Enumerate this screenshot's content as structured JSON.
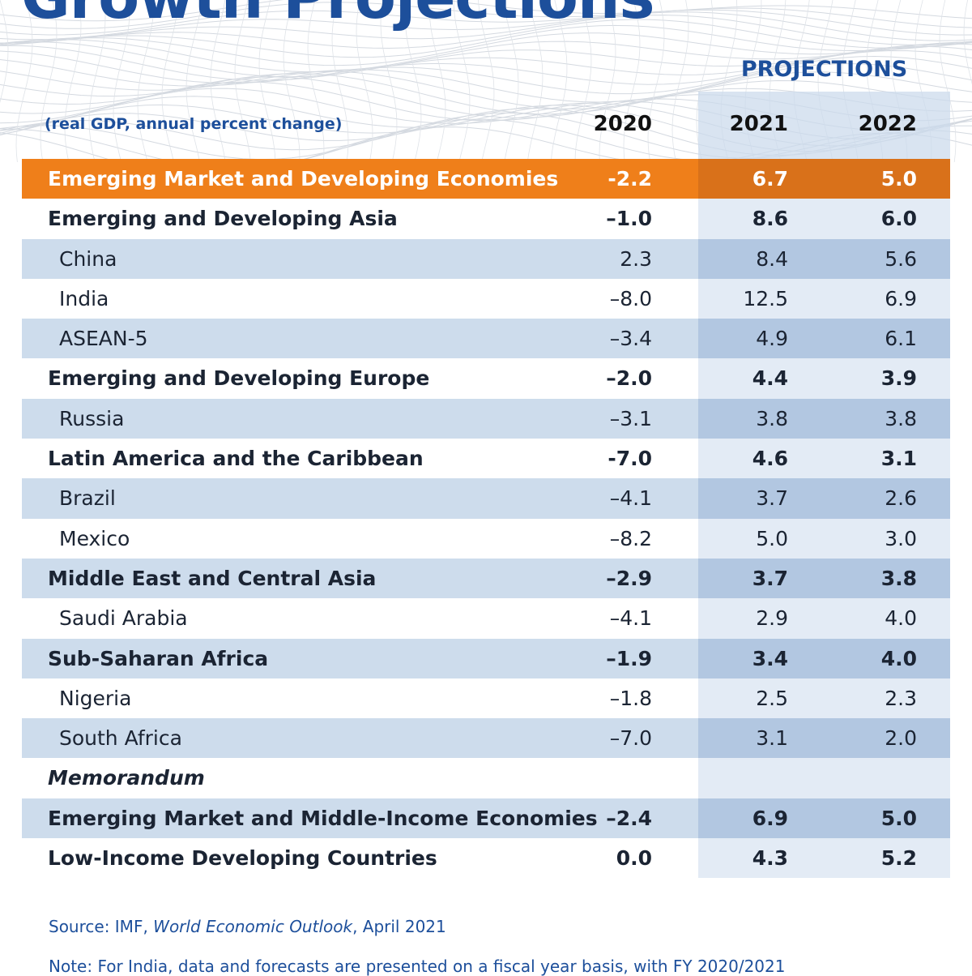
{
  "title": "Growth Projections",
  "projections_label": "PROJECTIONS",
  "units_note": "(real GDP, annual percent change)",
  "columns": [
    "2020",
    "2021",
    "2022"
  ],
  "rows": [
    {
      "label": "Emerging Market and Developing Economies",
      "level": 1,
      "values": [
        "-2.2",
        "6.7",
        "5.0"
      ],
      "highlight": true
    },
    {
      "label": "Emerging and Developing Asia",
      "level": 1,
      "values": [
        "–1.0",
        "8.6",
        "6.0"
      ]
    },
    {
      "label": "China",
      "level": 2,
      "values": [
        "2.3",
        "8.4",
        "5.6"
      ]
    },
    {
      "label": "India",
      "level": 2,
      "values": [
        "–8.0",
        "12.5",
        "6.9"
      ]
    },
    {
      "label": "ASEAN-5",
      "level": 2,
      "values": [
        "–3.4",
        "4.9",
        "6.1"
      ]
    },
    {
      "label": "Emerging and Developing Europe",
      "level": 1,
      "values": [
        "–2.0",
        "4.4",
        "3.9"
      ]
    },
    {
      "label": "Russia",
      "level": 2,
      "values": [
        "–3.1",
        "3.8",
        "3.8"
      ]
    },
    {
      "label": "Latin America and the Caribbean",
      "level": 1,
      "values": [
        "-7.0",
        "4.6",
        "3.1"
      ]
    },
    {
      "label": "Brazil",
      "level": 2,
      "values": [
        "–4.1",
        "3.7",
        "2.6"
      ]
    },
    {
      "label": "Mexico",
      "level": 2,
      "values": [
        "–8.2",
        "5.0",
        "3.0"
      ]
    },
    {
      "label": "Middle East and Central Asia",
      "level": 1,
      "values": [
        "–2.9",
        "3.7",
        "3.8"
      ]
    },
    {
      "label": "Saudi Arabia",
      "level": 2,
      "values": [
        "–4.1",
        "2.9",
        "4.0"
      ]
    },
    {
      "label": "Sub-Saharan Africa",
      "level": 1,
      "values": [
        "–1.9",
        "3.4",
        "4.0"
      ]
    },
    {
      "label": "Nigeria",
      "level": 2,
      "values": [
        "–1.8",
        "2.5",
        "2.3"
      ]
    },
    {
      "label": "South Africa",
      "level": 2,
      "values": [
        "–7.0",
        "3.1",
        "2.0"
      ]
    },
    {
      "label": "Memorandum",
      "level": 0,
      "values": [
        "",
        "",
        ""
      ]
    },
    {
      "label": "Emerging Market and Middle-Income Economies",
      "level": 1,
      "values": [
        "–2.4",
        "6.9",
        "5.0"
      ]
    },
    {
      "label": "Low-Income Developing Countries",
      "level": 1,
      "values": [
        "0.0",
        "4.3",
        "5.2"
      ]
    }
  ],
  "footer": {
    "source_prefix": "Source: IMF, ",
    "source_italic": "World Economic Outlook",
    "source_suffix": ", April 2021",
    "note": "Note: For India, data and forecasts are presented on a fiscal year basis, with FY 2020/2021"
  },
  "colors": {
    "brand_blue": "#1d4f9b",
    "highlight_orange": "#ef7f1a",
    "band_light": "#cddcec",
    "band_dark": "#b2c7e1"
  }
}
